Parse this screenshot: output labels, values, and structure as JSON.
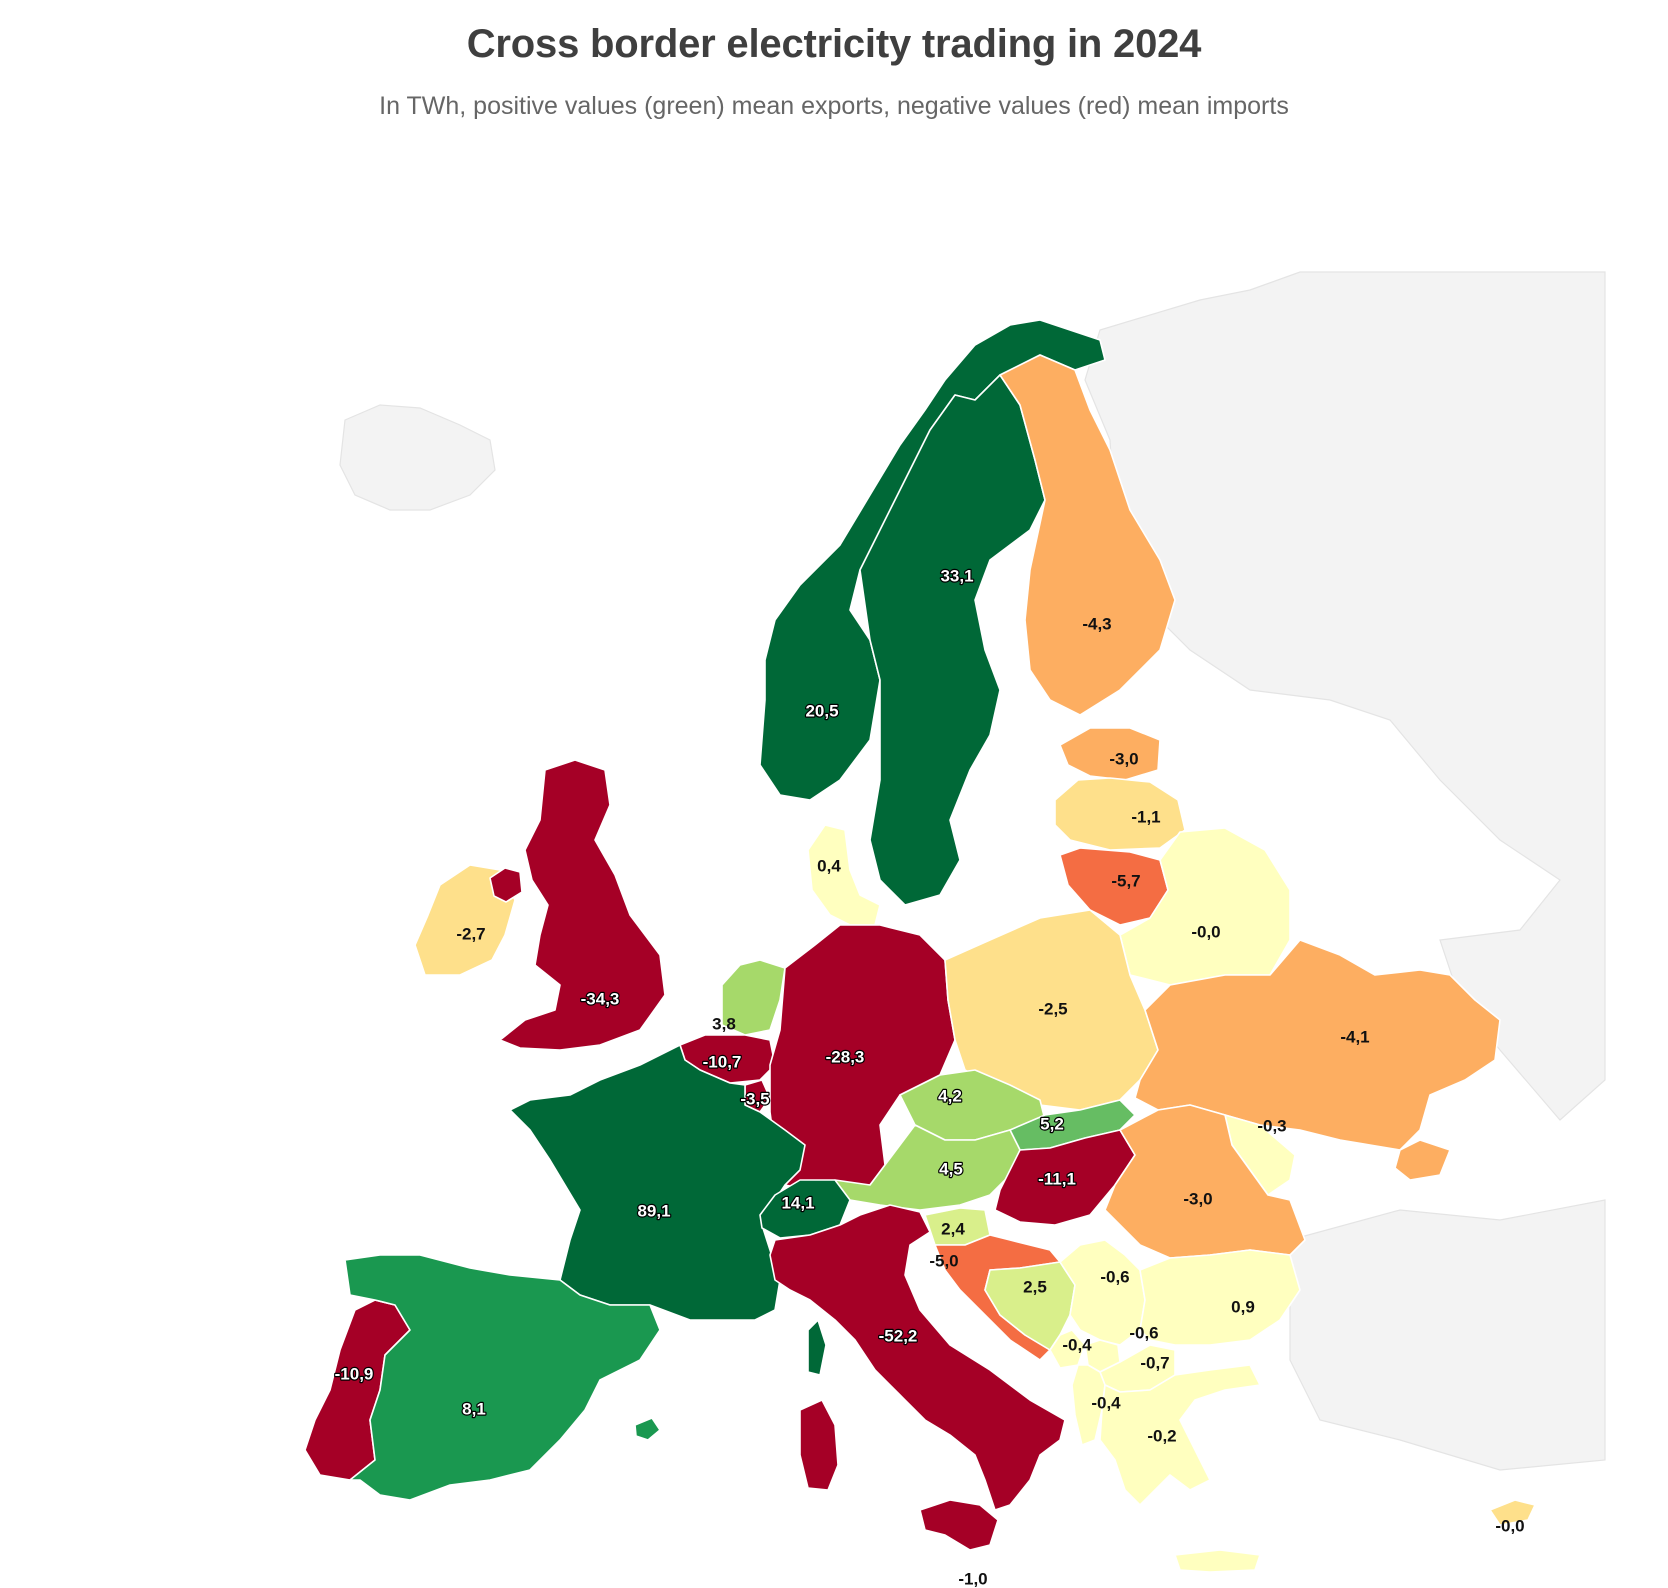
{
  "title": "Cross border electricity trading in 2024",
  "subtitle": "In TWh, positive values (green) mean exports, negative values (red) mean imports",
  "colors": {
    "strong_export": "#006837",
    "export": "#1a9850",
    "mild_export": "#66bd63",
    "light_export": "#a6d96a",
    "faint_export": "#d9ef8b",
    "neutral": "#ffffbf",
    "faint_import": "#fee08b",
    "light_import": "#fdae61",
    "mild_import": "#f46d43",
    "strong_import": "#a50026",
    "background_land": "#f3f3f3"
  },
  "countries": [
    {
      "name": "Norway",
      "value": "20,5"
    },
    {
      "name": "Sweden",
      "value": "33,1"
    },
    {
      "name": "Finland",
      "value": "-4,3"
    },
    {
      "name": "Estonia",
      "value": "-3,0"
    },
    {
      "name": "Latvia",
      "value": "-1,1"
    },
    {
      "name": "Lithuania",
      "value": "-5,7"
    },
    {
      "name": "Belarus",
      "value": "-0,0"
    },
    {
      "name": "Denmark",
      "value": "0,4"
    },
    {
      "name": "Ireland",
      "value": "-2,7"
    },
    {
      "name": "United Kingdom",
      "value": "-34,3"
    },
    {
      "name": "Netherlands",
      "value": "3,8"
    },
    {
      "name": "Belgium",
      "value": "-10,7"
    },
    {
      "name": "Luxembourg",
      "value": "-3,5"
    },
    {
      "name": "Germany",
      "value": "-28,3"
    },
    {
      "name": "Poland",
      "value": "-2,5"
    },
    {
      "name": "Ukraine",
      "value": "-4,1"
    },
    {
      "name": "Czechia",
      "value": "4,2"
    },
    {
      "name": "Slovakia",
      "value": "5,2"
    },
    {
      "name": "Moldova",
      "value": "-0,3"
    },
    {
      "name": "France",
      "value": "89,1"
    },
    {
      "name": "Austria",
      "value": "4,5"
    },
    {
      "name": "Hungary",
      "value": "-11,1"
    },
    {
      "name": "Romania",
      "value": "-3,0"
    },
    {
      "name": "Switzerland",
      "value": "14,1"
    },
    {
      "name": "Slovenia",
      "value": "2,4"
    },
    {
      "name": "Croatia",
      "value": "-5,0"
    },
    {
      "name": "Bosnia and Herzegovina",
      "value": "2,5"
    },
    {
      "name": "Serbia",
      "value": "-0,6"
    },
    {
      "name": "Bulgaria",
      "value": "0,9"
    },
    {
      "name": "Montenegro",
      "value": "-0,4"
    },
    {
      "name": "Kosovo",
      "value": "-0,6"
    },
    {
      "name": "North Macedonia",
      "value": "-0,7"
    },
    {
      "name": "Albania",
      "value": "-0,4"
    },
    {
      "name": "Greece",
      "value": "-0,2"
    },
    {
      "name": "Portugal",
      "value": "-10,9"
    },
    {
      "name": "Spain",
      "value": "8,1"
    },
    {
      "name": "Italy",
      "value": "-52,2"
    },
    {
      "name": "Cyprus",
      "value": "-0,0"
    },
    {
      "name": "Malta",
      "value": "-1,0"
    }
  ]
}
